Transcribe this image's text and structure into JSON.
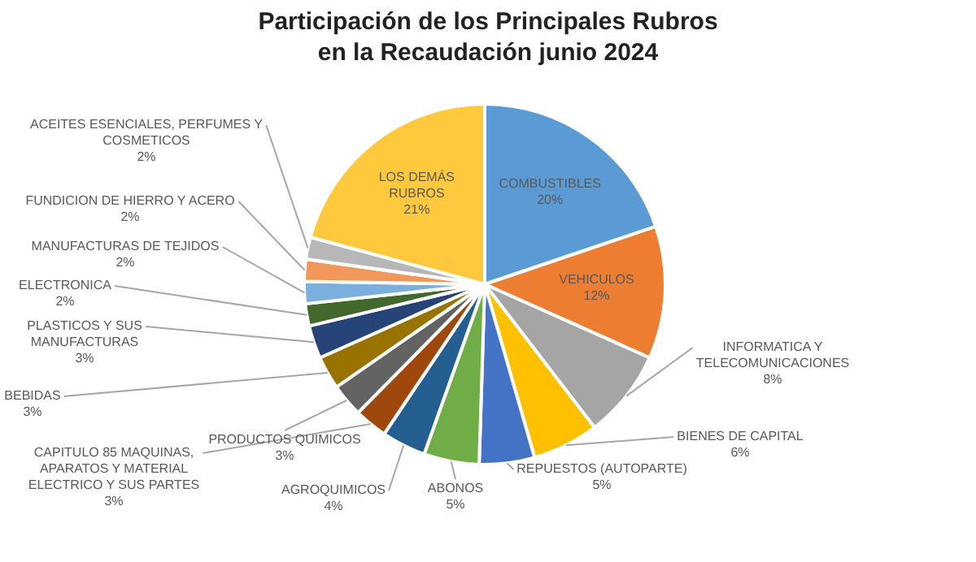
{
  "chart_data": {
    "type": "pie",
    "title": "Participación de los Principales Rubros en la Recaudación junio 2024",
    "categories": [
      "COMBUSTIBLES",
      "VEHICULOS",
      "INFORMATICA Y TELECOMUNICACIONES",
      "BIENES DE CAPITAL",
      "REPUESTOS (AUTOPARTE)",
      "ABONOS",
      "AGROQUIMICOS",
      "CAPITULO 85 MAQUINAS, APARATOS Y MATERIAL ELECTRICO Y SUS PARTES",
      "PRODUCTOS QUIMICOS",
      "BEBIDAS",
      "PLASTICOS Y SUS MANUFACTURAS",
      "ELECTRONICA",
      "MANUFACTURAS DE TEJIDOS",
      "FUNDICION DE HIERRO Y ACERO",
      "ACEITES ESENCIALES, PERFUMES Y COSMETICOS",
      "LOS DEMÁS RUBROS"
    ],
    "values": [
      20,
      12,
      8,
      6,
      5,
      5,
      4,
      3,
      3,
      3,
      3,
      2,
      2,
      2,
      2,
      21
    ],
    "value_labels": [
      "20%",
      "12%",
      "8%",
      "6%",
      "5%",
      "5%",
      "4%",
      "3%",
      "3%",
      "3%",
      "3%",
      "2%",
      "2%",
      "2%",
      "2%",
      "21%"
    ],
    "colors": [
      "#5b9bd5",
      "#ed7d31",
      "#a5a5a5",
      "#ffc000",
      "#4472c4",
      "#70ad47",
      "#255e91",
      "#9e480e",
      "#636363",
      "#997300",
      "#264478",
      "#43682b",
      "#7cafdd",
      "#f1975a",
      "#b7b7b7",
      "#ffc83d"
    ],
    "legend": false
  }
}
